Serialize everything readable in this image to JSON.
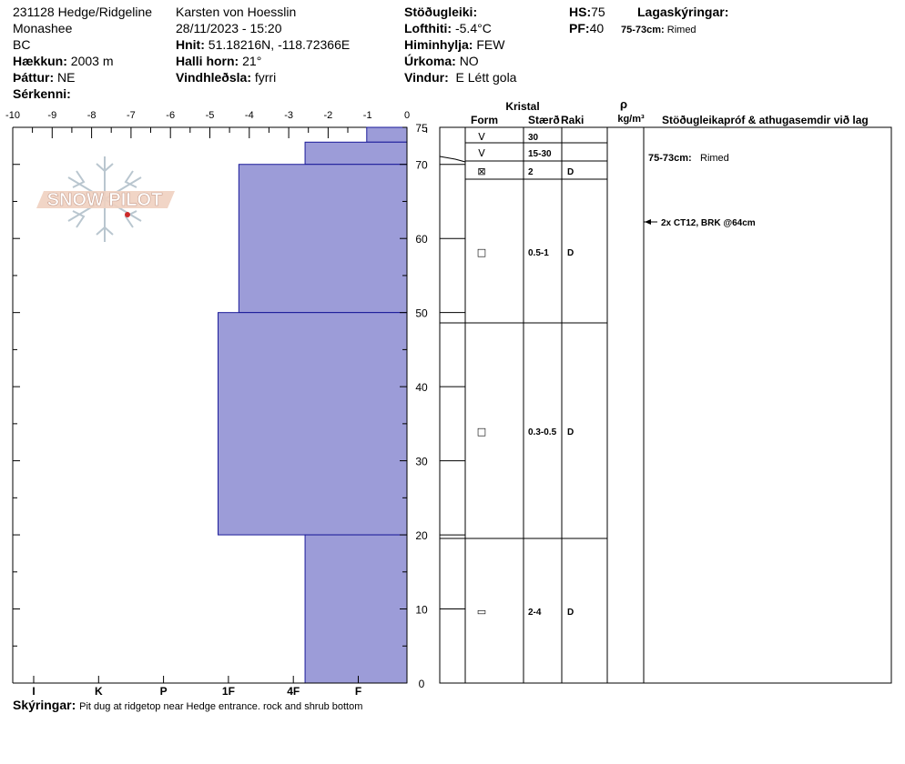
{
  "header": {
    "col1": {
      "site": "231128 Hedge/Ridgeline",
      "range": "Monashee",
      "region": "BC",
      "elevation_label": "Hækkun:",
      "elevation_value": "2003 m",
      "aspect_label": "Þáttur:",
      "aspect_value": "NE",
      "features_label": "Sérkenni:"
    },
    "col2": {
      "observer": "Karsten  von Hoesslin",
      "datetime": "28/11/2023 - 15:20",
      "coords_label": "Hnit:",
      "coords_value": "51.18216N, -118.72366E",
      "slope_label": "Halli horn:",
      "slope_value": "21°",
      "wind_loading_label": "Vindhleðsla:",
      "wind_loading_value": "fyrri"
    },
    "col3": {
      "stability_label": "Stöðugleiki:",
      "air_temp_label": "Lofthiti:",
      "air_temp_value": "-5.4°C",
      "sky_label": "Himinhylja:",
      "sky_value": "FEW",
      "precip_label": "Úrkoma:",
      "precip_value": "NO",
      "wind_label": "Vindur:",
      "wind_value": "E Létt gola"
    },
    "col4": {
      "hs_label": "HS:",
      "hs_value": "75",
      "pf_label": "PF:",
      "pf_value": "40"
    },
    "col5": {
      "layer_notes_label": "Lagaskýringar:",
      "layer_note_range": "75-73cm:",
      "layer_note_text": "Rimed"
    }
  },
  "chart_data": {
    "type": "snow_profile",
    "temperature_axis": {
      "ticks": [
        "-10",
        "-9",
        "-8",
        "-7",
        "-6",
        "-5",
        "-4",
        "-3",
        "-2",
        "-1",
        "0"
      ],
      "range": [
        -10,
        0
      ]
    },
    "height_axis": {
      "ticks": [
        "75",
        "70",
        "60",
        "50",
        "40",
        "30",
        "20",
        "10",
        "0"
      ],
      "range": [
        0,
        75
      ],
      "unit": "cm"
    },
    "hardness_axis": {
      "ticks": [
        "I",
        "K",
        "P",
        "1F",
        "4F",
        "F"
      ]
    },
    "hardness_layers": [
      {
        "bottom": 73,
        "top": 75,
        "hardness_index": 0.62
      },
      {
        "bottom": 70,
        "top": 73,
        "hardness_index": 1.57
      },
      {
        "bottom": 50,
        "top": 70,
        "hardness_index": 2.59
      },
      {
        "bottom": 20,
        "top": 50,
        "hardness_index": 2.91
      },
      {
        "bottom": 0,
        "top": 20,
        "hardness_index": 1.57
      }
    ],
    "bar_color": "#9c9cd8",
    "bar_border": "#1a1a99"
  },
  "table": {
    "crystal_header": "Kristal",
    "form_header": "Form",
    "size_header": "Stærð",
    "moisture_header": "Raki",
    "density_symbol": "ρ",
    "density_unit": "kg/m³",
    "tests_header": "Stöðugleikapróf & athugasemdir við lag",
    "rows": [
      {
        "top": 75,
        "bottom": 73,
        "form": "V",
        "size": "30",
        "moisture": ""
      },
      {
        "top": 73,
        "bottom": 70,
        "form": "V",
        "size": "15-30",
        "moisture": ""
      },
      {
        "top": 70,
        "bottom": 70,
        "form": "⊠",
        "size": "2",
        "moisture": "D"
      },
      {
        "top": 70,
        "bottom": 50,
        "form": "□",
        "size": "0.5-1",
        "moisture": "D"
      },
      {
        "top": 50,
        "bottom": 20,
        "form": "□",
        "size": "0.3-0.5",
        "moisture": "D"
      },
      {
        "top": 20,
        "bottom": 0,
        "form": "▭",
        "size": "2-4",
        "moisture": "D"
      }
    ],
    "comment_range": "75-73cm:",
    "comment_text": "Rimed",
    "test_result": "2x CT12, BRK @64cm"
  },
  "logo_text": "SNOW PILOT",
  "footer": {
    "notes_label": "Skýringar:",
    "notes_value": "Pit dug at ridgetop near Hedge entrance. rock and shrub bottom"
  }
}
